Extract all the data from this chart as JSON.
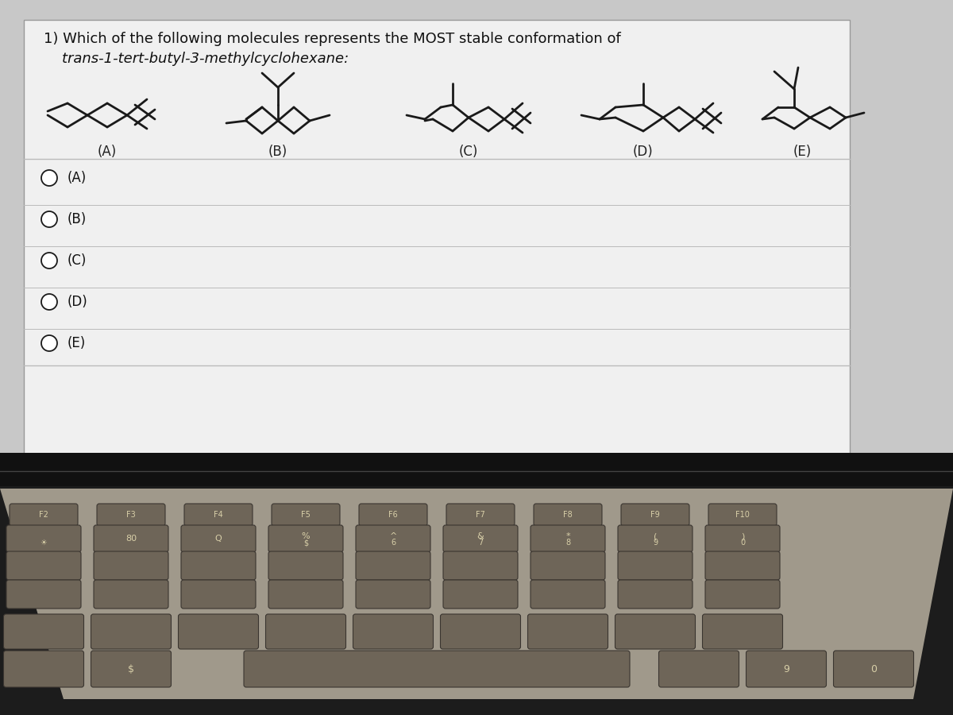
{
  "title_line1": "1) Which of the following molecules represents the MOST stable conformation of",
  "title_line2": "    trans-1-tert-butyl-3-methylcyclohexane:",
  "options": [
    "(A)",
    "(B)",
    "(C)",
    "(D)",
    "(E)"
  ],
  "radio_options": [
    "(A)",
    "(B)",
    "(C)",
    "(D)",
    "(E)"
  ],
  "screen_bg": "#c8c8c8",
  "panel_bg": "#efefef",
  "line_color": "#1a1a1a",
  "text_color": "#111111",
  "label_color": "#222222",
  "keyboard_bg": "#1a1a1a",
  "key_color": "#7a7060",
  "key_text": "#e8dfc0",
  "separator_color": "#bbbbbb"
}
